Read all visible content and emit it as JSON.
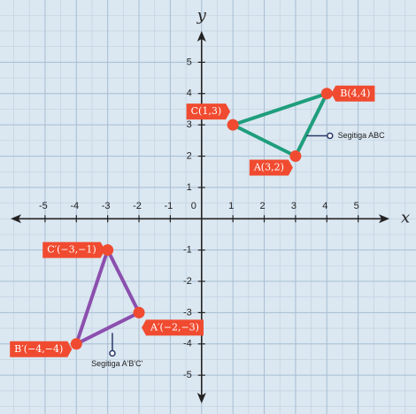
{
  "chart_data": {
    "type": "polygon",
    "x_label": "x",
    "y_label": "y",
    "xlim": [
      -6.1,
      6
    ],
    "ylim": [
      -5.9,
      6
    ],
    "xticks": [
      -5,
      -4,
      -3,
      -2,
      -1,
      0,
      1,
      2,
      3,
      4,
      5
    ],
    "yticks": [
      -5,
      -4,
      -3,
      -2,
      -1,
      1,
      2,
      3,
      4,
      5
    ],
    "grid": true,
    "point_color": "#f04b30",
    "series": [
      {
        "name": "Segitiga ABC",
        "color": "#1f9e7c",
        "x": [
          1,
          4,
          3
        ],
        "values": [
          3,
          4,
          2
        ],
        "value_labels": [
          "C(1,3)",
          "B(4,4)",
          "A(3,2)"
        ]
      },
      {
        "name": "Segitiga A'B'C'",
        "color": "#8b4fae",
        "x": [
          -3,
          -2,
          -4
        ],
        "values": [
          -1,
          -3,
          -4
        ],
        "value_labels": [
          "C′(−3,−1)",
          "A′(−2,−3)",
          "B′(−4,−4)"
        ]
      }
    ]
  }
}
